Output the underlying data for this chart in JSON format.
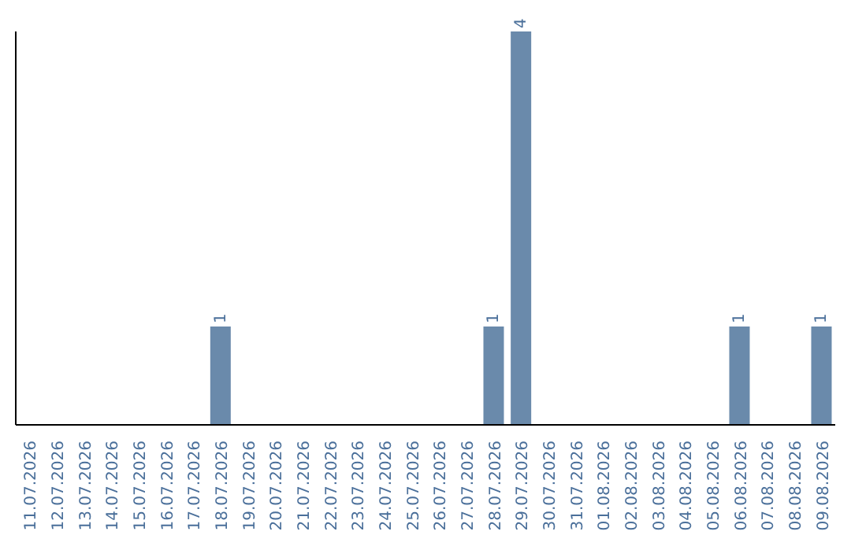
{
  "chart_data": {
    "type": "bar",
    "categories": [
      "11.07.2026",
      "12.07.2026",
      "13.07.2026",
      "14.07.2026",
      "15.07.2026",
      "16.07.2026",
      "17.07.2026",
      "18.07.2026",
      "19.07.2026",
      "20.07.2026",
      "21.07.2026",
      "22.07.2026",
      "23.07.2026",
      "24.07.2026",
      "25.07.2026",
      "26.07.2026",
      "27.07.2026",
      "28.07.2026",
      "29.07.2026",
      "30.07.2026",
      "31.07.2026",
      "01.08.2026",
      "02.08.2026",
      "03.08.2026",
      "04.08.2026",
      "05.08.2026",
      "06.08.2026",
      "07.08.2026",
      "08.08.2026",
      "09.08.2026"
    ],
    "values": [
      0,
      0,
      0,
      0,
      0,
      0,
      0,
      1,
      0,
      0,
      0,
      0,
      0,
      0,
      0,
      0,
      0,
      1,
      4,
      0,
      0,
      0,
      0,
      0,
      0,
      0,
      1,
      0,
      0,
      1
    ],
    "value_labels": [
      null,
      null,
      null,
      null,
      null,
      null,
      null,
      "1",
      null,
      null,
      null,
      null,
      null,
      null,
      null,
      null,
      null,
      "1",
      "4",
      null,
      null,
      null,
      null,
      null,
      null,
      null,
      "1",
      null,
      null,
      "1"
    ],
    "color": "#6a8aab",
    "tick_labels": "x"
  }
}
